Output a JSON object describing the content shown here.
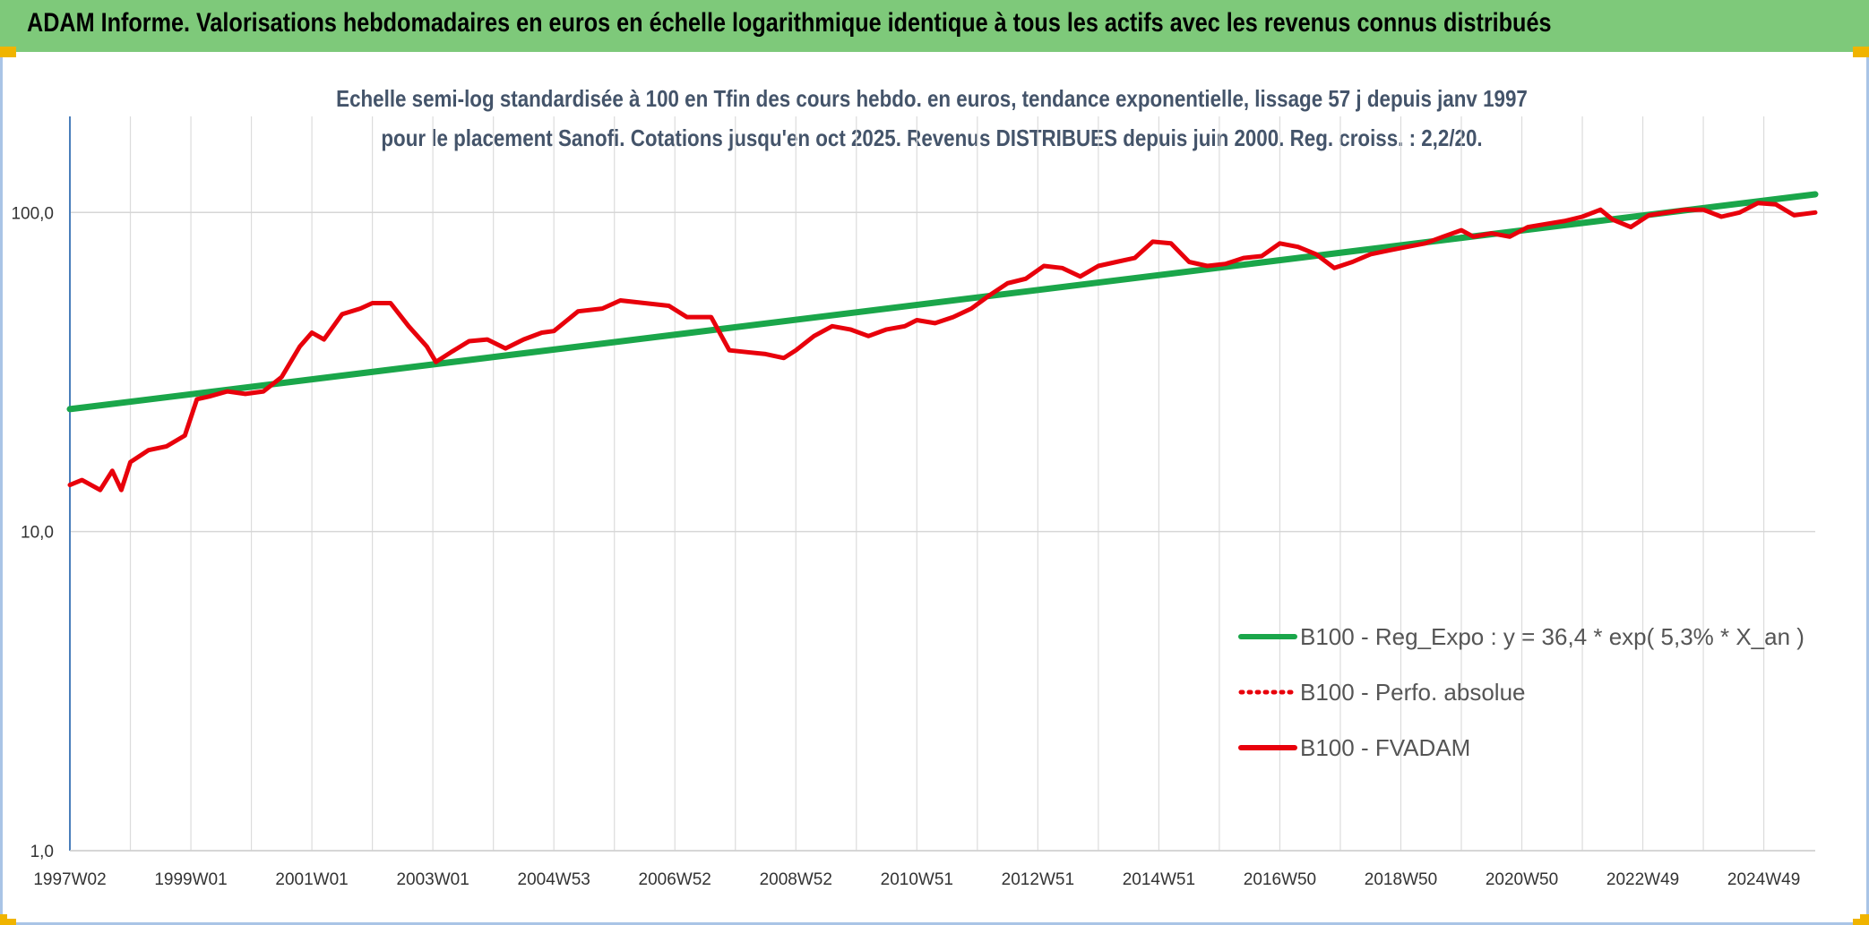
{
  "header": {
    "title": "ADAM Informe. Valorisations hebdomadaires en euros en échelle logarithmique identique à tous les actifs avec les revenus connus distribués"
  },
  "chart_data": {
    "type": "line",
    "title": "Echelle semi-log standardisée à 100 en Tfin des cours hebdo. en euros, tendance exponentielle, lissage 57 j depuis janv 1997 pour le placement Sanofi. Cotations jusqu'en oct 2025. Revenus DISTRIBUES depuis juin 2000. Reg. croiss. : 2,2/20.",
    "yscale": "log",
    "ylim": [
      1,
      200
    ],
    "yticks": [
      "100,0",
      "10,0",
      "1,0"
    ],
    "xlim": [
      1997.0,
      2025.85
    ],
    "xticks": [
      "1997W02",
      "1999W01",
      "2001W01",
      "2003W01",
      "2004W53",
      "2006W52",
      "2008W52",
      "2010W51",
      "2012W51",
      "2014W51",
      "2016W50",
      "2018W50",
      "2020W50",
      "2022W49",
      "2024W49"
    ],
    "xtick_years": [
      1997.0,
      1999.0,
      2001.0,
      2003.0,
      2005.0,
      2007.0,
      2009.0,
      2011.0,
      2013.0,
      2015.0,
      2017.0,
      2019.0,
      2021.0,
      2023.0,
      2025.0
    ],
    "grid": true,
    "legend_position": "bottom-right",
    "series": [
      {
        "name": "B100 - Reg_Expo : y = 36,4 * exp( 5,3% *  X_an )",
        "color": "#1aa64a",
        "style": "solid",
        "x": [
          1997.0,
          2025.85
        ],
        "y": [
          24.2,
          114.0
        ]
      },
      {
        "name": "B100 - Perfo. absolue",
        "color": "#e8000b",
        "style": "dotted",
        "x": [],
        "y": []
      },
      {
        "name": "B100 - FVADAM",
        "color": "#e8000b",
        "style": "solid",
        "x": [
          1997.0,
          1997.2,
          1997.5,
          1997.7,
          1997.85,
          1998.0,
          1998.3,
          1998.6,
          1998.9,
          1999.1,
          1999.3,
          1999.6,
          1999.9,
          2000.2,
          2000.5,
          2000.8,
          2001.0,
          2001.2,
          2001.5,
          2001.8,
          2002.0,
          2002.3,
          2002.6,
          2002.9,
          2003.05,
          2003.3,
          2003.6,
          2003.9,
          2004.2,
          2004.5,
          2004.8,
          2005.0,
          2005.4,
          2005.8,
          2006.1,
          2006.5,
          2006.9,
          2007.2,
          2007.4,
          2007.6,
          2007.9,
          2008.2,
          2008.5,
          2008.8,
          2009.0,
          2009.3,
          2009.6,
          2009.9,
          2010.2,
          2010.5,
          2010.8,
          2011.0,
          2011.3,
          2011.6,
          2011.9,
          2012.2,
          2012.5,
          2012.8,
          2013.1,
          2013.4,
          2013.7,
          2014.0,
          2014.3,
          2014.6,
          2014.9,
          2015.2,
          2015.5,
          2015.8,
          2016.1,
          2016.4,
          2016.7,
          2017.0,
          2017.3,
          2017.6,
          2017.9,
          2018.2,
          2018.5,
          2018.8,
          2019.1,
          2019.4,
          2019.7,
          2020.0,
          2020.2,
          2020.5,
          2020.8,
          2021.1,
          2021.4,
          2021.7,
          2022.0,
          2022.3,
          2022.5,
          2022.8,
          2023.1,
          2023.4,
          2023.7,
          2024.0,
          2024.3,
          2024.6,
          2024.9,
          2025.2,
          2025.5,
          2025.85
        ],
        "y": [
          14.0,
          14.5,
          13.5,
          15.5,
          13.5,
          16.5,
          18.0,
          18.5,
          20.0,
          26.0,
          26.5,
          27.5,
          27.0,
          27.5,
          30.5,
          38.0,
          42.0,
          40.0,
          48.0,
          50.0,
          52.0,
          52.0,
          44.0,
          38.0,
          34.0,
          36.5,
          39.5,
          40.0,
          37.5,
          40.0,
          42.0,
          42.5,
          49.0,
          50.0,
          53.0,
          52.0,
          51.0,
          47.0,
          47.0,
          47.0,
          37.0,
          36.5,
          36.0,
          35.0,
          37.0,
          41.0,
          44.0,
          43.0,
          41.0,
          43.0,
          44.0,
          46.0,
          45.0,
          47.0,
          50.0,
          55.0,
          60.0,
          62.0,
          68.0,
          67.0,
          63.0,
          68.0,
          70.0,
          72.0,
          81.0,
          80.0,
          70.0,
          68.0,
          69.0,
          72.0,
          73.0,
          80.0,
          78.0,
          74.0,
          67.0,
          70.0,
          74.0,
          76.0,
          78.0,
          80.0,
          84.0,
          88.0,
          84.0,
          86.0,
          84.0,
          90.0,
          92.0,
          94.0,
          97.0,
          102.0,
          95.0,
          90.0,
          98.0,
          100.0,
          102.0,
          102.0,
          97.0,
          100.0,
          107.0,
          106.0,
          98.0,
          100.0
        ]
      }
    ]
  }
}
